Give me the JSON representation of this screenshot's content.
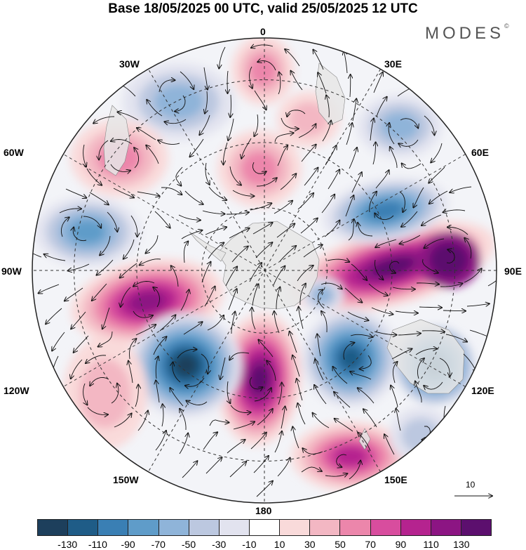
{
  "title": "Base 18/05/2025 00 UTC, valid 25/05/2025 12 UTC",
  "brand": "MODES",
  "brand_mark": "©",
  "longitude_labels": [
    {
      "id": "lon-0",
      "text": "0"
    },
    {
      "id": "lon-30e",
      "text": "30E"
    },
    {
      "id": "lon-60e",
      "text": "60E"
    },
    {
      "id": "lon-90e",
      "text": "90E"
    },
    {
      "id": "lon-120e",
      "text": "120E"
    },
    {
      "id": "lon-150e",
      "text": "150E"
    },
    {
      "id": "lon-180",
      "text": "180"
    },
    {
      "id": "lon-150w",
      "text": "150W"
    },
    {
      "id": "lon-120w",
      "text": "120W"
    },
    {
      "id": "lon-90w",
      "text": "90W"
    },
    {
      "id": "lon-60w",
      "text": "60W"
    },
    {
      "id": "lon-30w",
      "text": "30W"
    }
  ],
  "reference_vector_label": "10",
  "colorbar": {
    "colors": [
      "#1d3f5c",
      "#1f5c87",
      "#3a7fb4",
      "#5f9cc9",
      "#8fb4d9",
      "#bcc8e0",
      "#e2e3ef",
      "#ffffff",
      "#f9dada",
      "#f3b7c3",
      "#ec86ab",
      "#d84d9e",
      "#b5238f",
      "#8c1583",
      "#5c0f6e"
    ],
    "tick_labels": [
      "-130",
      "-110",
      "-90",
      "-70",
      "-50",
      "-30",
      "-10",
      "10",
      "30",
      "50",
      "70",
      "90",
      "110",
      "130"
    ]
  },
  "map_colors": {
    "land": "#e6e6e6",
    "grid": "#333333",
    "vectors": "#111111"
  }
}
